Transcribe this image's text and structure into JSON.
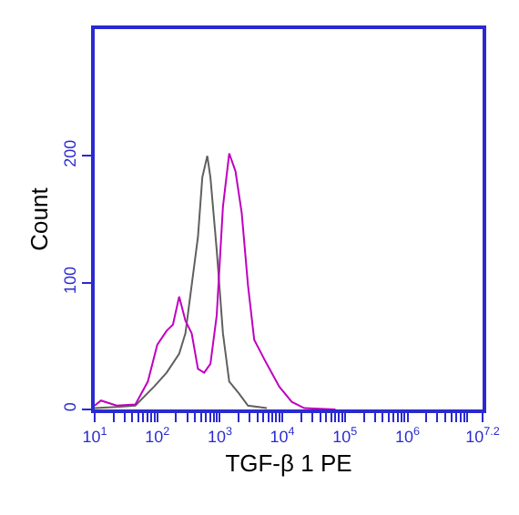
{
  "chart_data": {
    "type": "line",
    "xlabel": "TGF-β 1 PE",
    "ylabel": "Count",
    "log": "x",
    "xlim": [
      10,
      15848932
    ],
    "ylim": [
      0,
      300
    ],
    "xticks": [
      {
        "value": 10,
        "label": "10$^{1}$"
      },
      {
        "value": 20,
        "label": null
      },
      {
        "value": 30,
        "label": null
      },
      {
        "value": 40,
        "label": null
      },
      {
        "value": 50,
        "label": null
      },
      {
        "value": 60,
        "label": null
      },
      {
        "value": 70,
        "label": null
      },
      {
        "value": 80,
        "label": null
      },
      {
        "value": 90,
        "label": null
      },
      {
        "value": 100,
        "label": "10$^{2}$"
      },
      {
        "value": 200,
        "label": null
      },
      {
        "value": 300,
        "label": null
      },
      {
        "value": 400,
        "label": null
      },
      {
        "value": 500,
        "label": null
      },
      {
        "value": 600,
        "label": null
      },
      {
        "value": 700,
        "label": null
      },
      {
        "value": 800,
        "label": null
      },
      {
        "value": 900,
        "label": null
      },
      {
        "value": 1000,
        "label": "10$^{3}$"
      },
      {
        "value": 2000,
        "label": null
      },
      {
        "value": 3000,
        "label": null
      },
      {
        "value": 4000,
        "label": null
      },
      {
        "value": 5000,
        "label": null
      },
      {
        "value": 6000,
        "label": null
      },
      {
        "value": 7000,
        "label": null
      },
      {
        "value": 8000,
        "label": null
      },
      {
        "value": 9000,
        "label": null
      },
      {
        "value": 10000,
        "label": "10$^{4}$"
      },
      {
        "value": 20000,
        "label": null
      },
      {
        "value": 30000,
        "label": null
      },
      {
        "value": 40000,
        "label": null
      },
      {
        "value": 50000,
        "label": null
      },
      {
        "value": 60000,
        "label": null
      },
      {
        "value": 70000,
        "label": null
      },
      {
        "value": 80000,
        "label": null
      },
      {
        "value": 90000,
        "label": null
      },
      {
        "value": 100000,
        "label": "10$^{5}$"
      },
      {
        "value": 200000,
        "label": null
      },
      {
        "value": 300000,
        "label": null
      },
      {
        "value": 400000,
        "label": null
      },
      {
        "value": 500000,
        "label": null
      },
      {
        "value": 600000,
        "label": null
      },
      {
        "value": 700000,
        "label": null
      },
      {
        "value": 800000,
        "label": null
      },
      {
        "value": 900000,
        "label": null
      },
      {
        "value": 1000000,
        "label": "10$^{6}$"
      },
      {
        "value": 2000000,
        "label": null
      },
      {
        "value": 3000000,
        "label": null
      },
      {
        "value": 4000000,
        "label": null
      },
      {
        "value": 5000000,
        "label": null
      },
      {
        "value": 6000000,
        "label": null
      },
      {
        "value": 7000000,
        "label": null
      },
      {
        "value": 8000000,
        "label": null
      },
      {
        "value": 9000000,
        "label": null
      },
      {
        "value": 15848932,
        "label": "10$^{7.2}$"
      }
    ],
    "yticks": [
      0,
      100,
      200
    ],
    "grid": false,
    "marker": "none",
    "line_style": "solid",
    "series": [
      {
        "color": "#606060",
        "x": [
          10,
          22.4,
          44.7,
          89.1,
          141,
          224,
          282,
          355,
          447,
          525,
          631,
          708,
          891,
          1122,
          1413,
          1995,
          2818,
          5623
        ],
        "values": [
          1,
          2,
          3,
          18,
          29,
          44,
          60,
          98,
          136,
          183,
          200,
          183,
          126,
          60,
          22,
          13,
          3,
          1
        ]
      },
      {
        "color": "#c000c0",
        "x": [
          10,
          12.6,
          22.4,
          44.7,
          70.8,
          100,
          141,
          178,
          224,
          282,
          355,
          447,
          562,
          708,
          891,
          1122,
          1413,
          1778,
          2239,
          2818,
          3548,
          5623,
          8913,
          14125,
          22387,
          70795
        ],
        "values": [
          3,
          7,
          3,
          4,
          22,
          51,
          62,
          67,
          89,
          70,
          60,
          32,
          29,
          36,
          74,
          160,
          202,
          188,
          155,
          98,
          55,
          36,
          18,
          6,
          1,
          0
        ]
      }
    ]
  }
}
